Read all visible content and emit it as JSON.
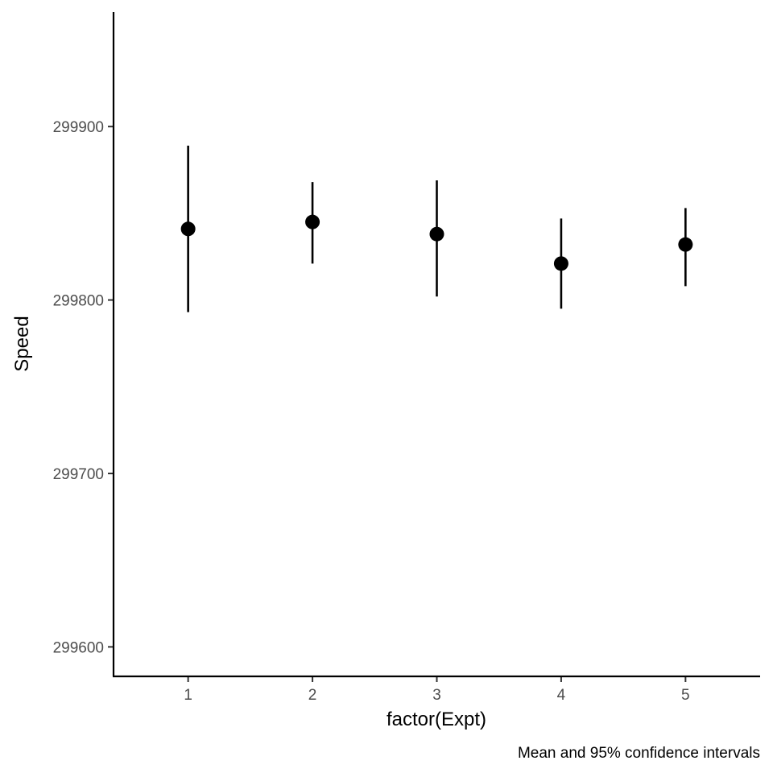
{
  "chart_data": {
    "type": "scatter",
    "x_label": "factor(Expt)",
    "y_label": "Speed",
    "caption": "Mean and 95% confidence intervals",
    "categories": [
      "1",
      "2",
      "3",
      "4",
      "5"
    ],
    "means": [
      299841,
      299845,
      299838,
      299821,
      299832
    ],
    "ci_lower": [
      299793,
      299821,
      299802,
      299795,
      299808
    ],
    "ci_upper": [
      299889,
      299868,
      299869,
      299847,
      299853
    ],
    "y_ticks": [
      "299600",
      "299700",
      "299800",
      "299900"
    ],
    "ylim": [
      299583,
      299966
    ],
    "grid": false,
    "point_color": "#000000"
  }
}
